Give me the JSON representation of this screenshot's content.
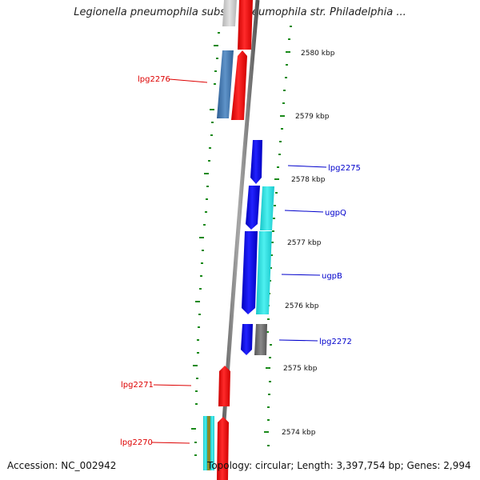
{
  "title": "Legionella pneumophila subsp. pneumophila str. Philadelphia ...",
  "accession": "Accession: NC_002942",
  "topology": "Topology: circular; Length: 3,397,754 bp; Genes: 2,994",
  "ticks": [
    {
      "label": "2580 kbp"
    },
    {
      "label": "2579 kbp"
    },
    {
      "label": "2578 kbp"
    },
    {
      "label": "2577 kbp"
    },
    {
      "label": "2576 kbp"
    },
    {
      "label": "2575 kbp"
    },
    {
      "label": "2574 kbp"
    }
  ],
  "genes": [
    {
      "label": "lpg2276"
    },
    {
      "label": "lpg2275"
    },
    {
      "label": "ugpQ"
    },
    {
      "label": "ugpB"
    },
    {
      "label": "lpg2272"
    },
    {
      "label": "lpg2271"
    },
    {
      "label": "lpg2270"
    }
  ],
  "colors": {
    "forward_cds": "#ff0000",
    "reverse_cds": "#1010ee",
    "reverse_secondary": "#22dde0",
    "blue_gray": "#4a7fb5",
    "gray": "#777777",
    "left_labels": "#dd0000",
    "right_labels": "#0000cc",
    "ruler_dots": "#1a8a1a"
  }
}
